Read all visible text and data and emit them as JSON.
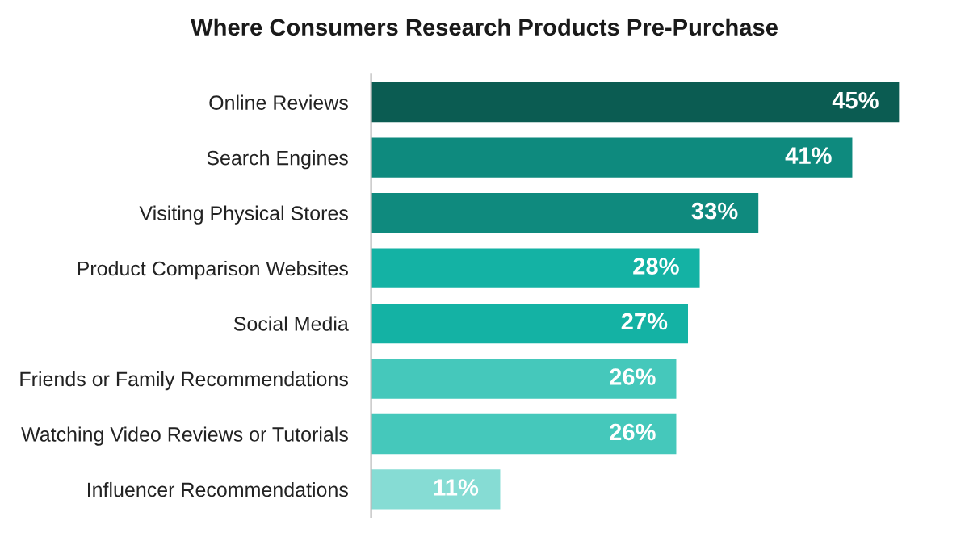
{
  "chart_data": {
    "type": "bar",
    "orientation": "horizontal",
    "title": "Where Consumers Research Products Pre-Purchase",
    "categories": [
      "Online Reviews",
      "Search Engines",
      "Visiting Physical Stores",
      "Product Comparison Websites",
      "Social Media",
      "Friends or Family Recommendations",
      "Watching Video Reviews or Tutorials",
      "Influencer Recommendations"
    ],
    "values": [
      45,
      41,
      33,
      28,
      27,
      26,
      26,
      11
    ],
    "value_labels": [
      "45%",
      "41%",
      "33%",
      "28%",
      "27%",
      "26%",
      "26%",
      "11%"
    ],
    "colors": [
      "#0b5c52",
      "#0e8a7e",
      "#0f8a7e",
      "#14b2a4",
      "#14b2a4",
      "#45c8bb",
      "#45c8bb",
      "#86dcd4"
    ],
    "tick_labels": "y",
    "grid": false,
    "legend": false
  }
}
